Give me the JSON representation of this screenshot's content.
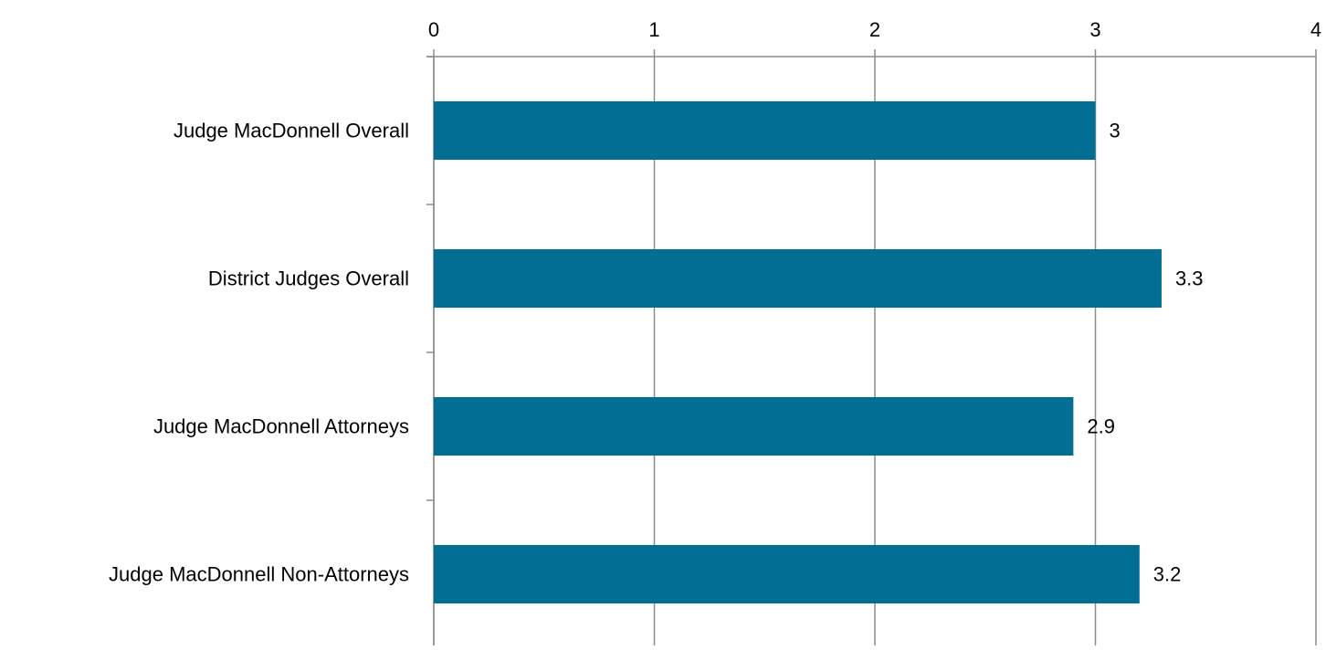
{
  "chart_data": {
    "type": "bar",
    "orientation": "horizontal",
    "title": "",
    "xlabel": "",
    "ylabel": "",
    "x_axis_position": "top",
    "xlim": [
      0,
      4
    ],
    "x_ticks": [
      "0",
      "1",
      "2",
      "3",
      "4"
    ],
    "grid": true,
    "legend": "none",
    "categories": [
      "Judge MacDonnell Overall",
      "District Judges Overall",
      "Judge MacDonnell Attorneys",
      "Judge MacDonnell Non-Attorneys"
    ],
    "values": [
      3,
      3.3,
      2.9,
      3.2
    ],
    "data_labels": [
      "3",
      "3.3",
      "2.9",
      "3.2"
    ],
    "bar_color": "#036E94",
    "gridline_color": "#8C8C8C"
  }
}
